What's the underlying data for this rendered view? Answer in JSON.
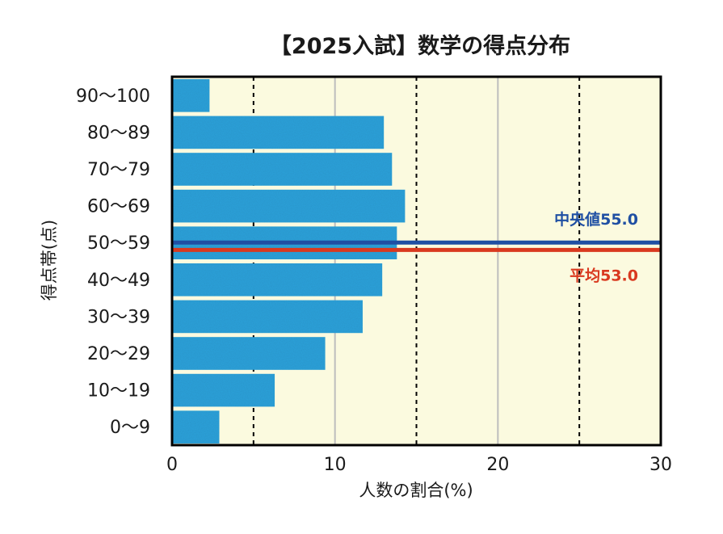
{
  "chart_data": {
    "type": "bar",
    "orientation": "horizontal",
    "title": "【2025入試】数学の得点分布",
    "xlabel": "人数の割合(%)",
    "ylabel": "得点帯(点)",
    "xlim": [
      0,
      30
    ],
    "x_ticks": [
      "0",
      "10",
      "20",
      "30"
    ],
    "minor_dashed_gridlines": [
      5,
      15,
      25
    ],
    "grid": true,
    "categories": [
      "90〜100",
      "80〜89",
      "70〜79",
      "60〜69",
      "50〜59",
      "40〜49",
      "30〜39",
      "20〜29",
      "10〜19",
      "0〜9"
    ],
    "values": [
      2.3,
      13.0,
      13.5,
      14.3,
      13.8,
      12.9,
      11.7,
      9.4,
      6.3,
      2.9
    ],
    "reference_lines": [
      {
        "label": "中央値55.0",
        "value": 55.0,
        "color": "#1f4fa3"
      },
      {
        "label": "平均53.0",
        "value": 53.0,
        "color": "#d9391f"
      }
    ],
    "colors": {
      "bar": "#2fa3dc",
      "plot_background": "#fbfadf",
      "major_grid": "#bdbdbd",
      "minor_grid": "#000000",
      "axis": "#000000"
    }
  }
}
